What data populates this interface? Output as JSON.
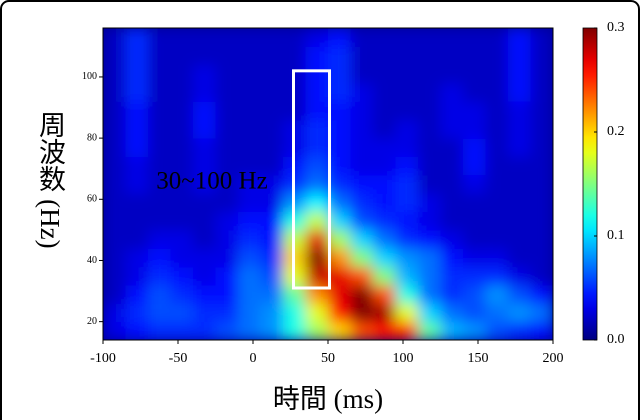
{
  "chart_data": {
    "type": "heatmap",
    "xlabel": "時間 (ms)",
    "ylabel": "周波数 (Hz)",
    "annotation": "30~100 Hz",
    "annotation_color": "#f2e600",
    "highlight": {
      "x": [
        27,
        51
      ],
      "y": [
        31,
        102
      ],
      "color": "#ffffff"
    },
    "colormap": "jet",
    "clim": [
      0,
      0.3
    ],
    "cticks": [
      {
        "value": 0,
        "label": "0.0"
      },
      0.1,
      0.2,
      0.3
    ],
    "xlim": [
      -100,
      200
    ],
    "xticks": [
      -100,
      -50,
      0,
      50,
      100,
      150,
      200
    ],
    "ylim": [
      14,
      116
    ],
    "yticks": [
      20,
      40,
      60,
      80,
      100
    ],
    "x": [
      -92.5,
      -77.5,
      -62.5,
      -47.5,
      -32.5,
      -17.5,
      -2.5,
      12.5,
      27.5,
      42.5,
      57.5,
      72.5,
      87.5,
      102.5,
      117.5,
      132.5,
      147.5,
      162.5,
      177.5,
      192.5
    ],
    "y": [
      17,
      23,
      29,
      35,
      41,
      47,
      53,
      59,
      65,
      71,
      77,
      83,
      89,
      95,
      101,
      107,
      113
    ],
    "values": [
      [
        0.03,
        0.04,
        0.05,
        0.05,
        0.05,
        0.06,
        0.07,
        0.08,
        0.12,
        0.16,
        0.2,
        0.24,
        0.26,
        0.25,
        0.14,
        0.09,
        0.08,
        0.06,
        0.05,
        0.04
      ],
      [
        0.03,
        0.05,
        0.06,
        0.06,
        0.05,
        0.05,
        0.07,
        0.08,
        0.12,
        0.18,
        0.26,
        0.3,
        0.29,
        0.18,
        0.1,
        0.07,
        0.06,
        0.07,
        0.08,
        0.07
      ],
      [
        0.02,
        0.04,
        0.06,
        0.05,
        0.04,
        0.04,
        0.07,
        0.07,
        0.14,
        0.22,
        0.27,
        0.3,
        0.24,
        0.12,
        0.07,
        0.05,
        0.06,
        0.08,
        0.06,
        0.04
      ],
      [
        0.02,
        0.03,
        0.05,
        0.04,
        0.03,
        0.04,
        0.07,
        0.06,
        0.18,
        0.28,
        0.27,
        0.24,
        0.15,
        0.09,
        0.07,
        0.05,
        0.05,
        0.05,
        0.03,
        0.02
      ],
      [
        0.02,
        0.03,
        0.04,
        0.03,
        0.03,
        0.03,
        0.06,
        0.05,
        0.2,
        0.3,
        0.22,
        0.15,
        0.1,
        0.08,
        0.07,
        0.04,
        0.03,
        0.03,
        0.02,
        0.02
      ],
      [
        0.02,
        0.02,
        0.03,
        0.03,
        0.02,
        0.03,
        0.05,
        0.04,
        0.17,
        0.27,
        0.16,
        0.1,
        0.07,
        0.05,
        0.04,
        0.03,
        0.02,
        0.02,
        0.02,
        0.02
      ],
      [
        0.02,
        0.02,
        0.02,
        0.02,
        0.02,
        0.03,
        0.04,
        0.04,
        0.12,
        0.17,
        0.1,
        0.06,
        0.05,
        0.04,
        0.03,
        0.02,
        0.02,
        0.02,
        0.02,
        0.02
      ],
      [
        0.02,
        0.02,
        0.02,
        0.02,
        0.02,
        0.02,
        0.03,
        0.03,
        0.08,
        0.11,
        0.07,
        0.05,
        0.04,
        0.05,
        0.03,
        0.02,
        0.02,
        0.02,
        0.02,
        0.02
      ],
      [
        0.02,
        0.03,
        0.02,
        0.02,
        0.03,
        0.02,
        0.03,
        0.03,
        0.05,
        0.07,
        0.05,
        0.04,
        0.04,
        0.05,
        0.02,
        0.02,
        0.03,
        0.02,
        0.02,
        0.02
      ],
      [
        0.02,
        0.03,
        0.02,
        0.02,
        0.03,
        0.02,
        0.02,
        0.02,
        0.04,
        0.06,
        0.04,
        0.03,
        0.03,
        0.04,
        0.02,
        0.02,
        0.04,
        0.02,
        0.02,
        0.02
      ],
      [
        0.02,
        0.04,
        0.02,
        0.02,
        0.03,
        0.02,
        0.02,
        0.02,
        0.03,
        0.05,
        0.04,
        0.03,
        0.03,
        0.03,
        0.02,
        0.02,
        0.04,
        0.02,
        0.03,
        0.02
      ],
      [
        0.02,
        0.04,
        0.02,
        0.02,
        0.04,
        0.02,
        0.02,
        0.02,
        0.03,
        0.05,
        0.04,
        0.03,
        0.02,
        0.03,
        0.02,
        0.03,
        0.03,
        0.02,
        0.03,
        0.02
      ],
      [
        0.02,
        0.04,
        0.02,
        0.02,
        0.04,
        0.02,
        0.02,
        0.02,
        0.02,
        0.04,
        0.04,
        0.03,
        0.02,
        0.02,
        0.02,
        0.03,
        0.03,
        0.02,
        0.03,
        0.02
      ],
      [
        0.02,
        0.05,
        0.02,
        0.02,
        0.03,
        0.02,
        0.02,
        0.02,
        0.02,
        0.04,
        0.05,
        0.03,
        0.02,
        0.02,
        0.02,
        0.03,
        0.02,
        0.02,
        0.04,
        0.02
      ],
      [
        0.02,
        0.05,
        0.02,
        0.02,
        0.03,
        0.02,
        0.02,
        0.02,
        0.02,
        0.04,
        0.05,
        0.02,
        0.02,
        0.02,
        0.02,
        0.02,
        0.02,
        0.02,
        0.04,
        0.02
      ],
      [
        0.02,
        0.05,
        0.02,
        0.02,
        0.02,
        0.02,
        0.02,
        0.02,
        0.02,
        0.04,
        0.05,
        0.02,
        0.02,
        0.02,
        0.02,
        0.02,
        0.02,
        0.02,
        0.04,
        0.02
      ],
      [
        0.02,
        0.05,
        0.02,
        0.02,
        0.02,
        0.02,
        0.02,
        0.02,
        0.02,
        0.03,
        0.04,
        0.02,
        0.02,
        0.02,
        0.02,
        0.02,
        0.02,
        0.02,
        0.04,
        0.02
      ]
    ]
  }
}
